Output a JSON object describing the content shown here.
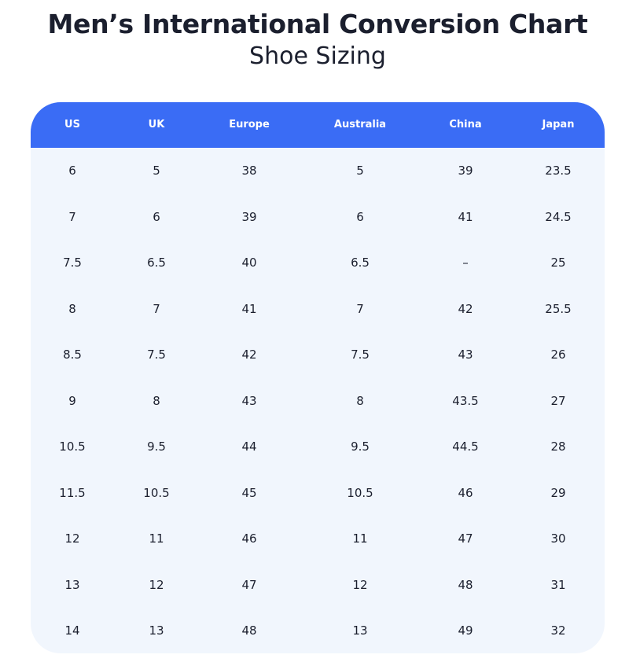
{
  "chart_data": {
    "type": "table",
    "title": "Men’s International Conversion Chart",
    "subtitle": "Shoe Sizing",
    "columns": [
      "US",
      "UK",
      "Europe",
      "Australia",
      "China",
      "Japan"
    ],
    "rows": [
      [
        "6",
        "5",
        "38",
        "5",
        "39",
        "23.5"
      ],
      [
        "7",
        "6",
        "39",
        "6",
        "41",
        "24.5"
      ],
      [
        "7.5",
        "6.5",
        "40",
        "6.5",
        "–",
        "25"
      ],
      [
        "8",
        "7",
        "41",
        "7",
        "42",
        "25.5"
      ],
      [
        "8.5",
        "7.5",
        "42",
        "7.5",
        "43",
        "26"
      ],
      [
        "9",
        "8",
        "43",
        "8",
        "43.5",
        "27"
      ],
      [
        "10.5",
        "9.5",
        "44",
        "9.5",
        "44.5",
        "28"
      ],
      [
        "11.5",
        "10.5",
        "45",
        "10.5",
        "46",
        "29"
      ],
      [
        "12",
        "11",
        "46",
        "11",
        "47",
        "30"
      ],
      [
        "13",
        "12",
        "47",
        "12",
        "48",
        "31"
      ],
      [
        "14",
        "13",
        "48",
        "13",
        "49",
        "32"
      ]
    ]
  },
  "colors": {
    "header_background": "#3a6cf5",
    "header_text": "#ffffff",
    "body_background": "#f1f6fd",
    "body_text": "#1b1f2e"
  }
}
